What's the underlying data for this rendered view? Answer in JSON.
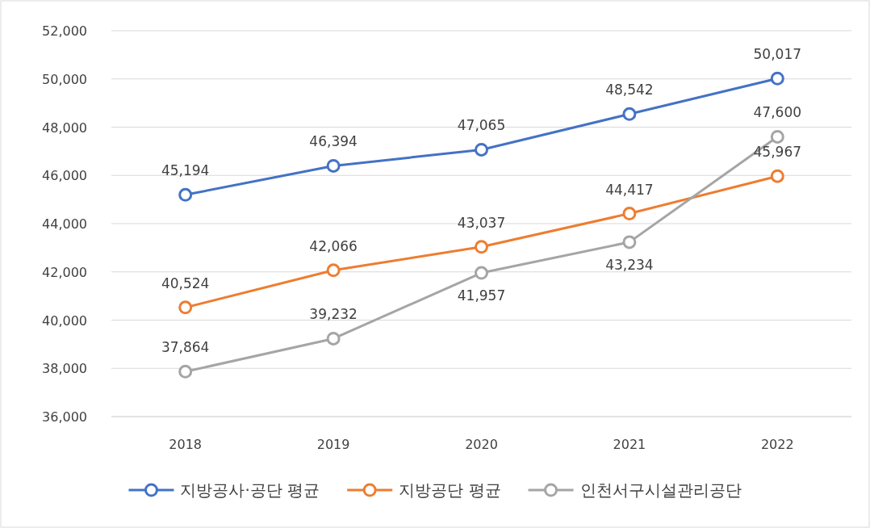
{
  "chart_data": {
    "type": "line",
    "categories": [
      "2018",
      "2019",
      "2020",
      "2021",
      "2022"
    ],
    "series": [
      {
        "name": "지방공사·공단 평균",
        "color": "#4472c4",
        "values": [
          45194,
          46394,
          47065,
          48542,
          50017
        ],
        "value_labels": [
          "45,194",
          "46,394",
          "47,065",
          "48,542",
          "50,017"
        ]
      },
      {
        "name": "지방공단 평균",
        "color": "#ed7d31",
        "values": [
          40524,
          42066,
          43037,
          44417,
          45967
        ],
        "value_labels": [
          "40,524",
          "42,066",
          "43,037",
          "44,417",
          "45,967"
        ]
      },
      {
        "name": "인천서구시설관리공단",
        "color": "#a5a5a5",
        "values": [
          37864,
          39232,
          41957,
          43234,
          47600
        ],
        "value_labels": [
          "37,864",
          "39,232",
          "41,957",
          "43,234",
          "47,600"
        ]
      }
    ],
    "ylim": [
      36000,
      52000
    ],
    "yticks": [
      {
        "value": 36000,
        "label": "36,000"
      },
      {
        "value": 38000,
        "label": "38,000"
      },
      {
        "value": 40000,
        "label": "40,000"
      },
      {
        "value": 42000,
        "label": "42,000"
      },
      {
        "value": 44000,
        "label": "44,000"
      },
      {
        "value": 46000,
        "label": "46,000"
      },
      {
        "value": 48000,
        "label": "48,000"
      },
      {
        "value": 50000,
        "label": "50,000"
      },
      {
        "value": 52000,
        "label": "52,000"
      }
    ],
    "grid": "y",
    "legend": "bottom",
    "marker": "circle",
    "line_style": "solid"
  }
}
